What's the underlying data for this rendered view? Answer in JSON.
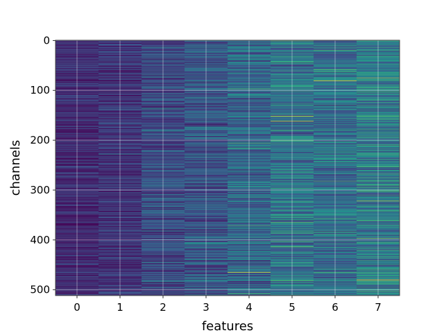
{
  "chart_data": {
    "type": "heatmap",
    "title": "",
    "xlabel": "features",
    "ylabel": "channels",
    "x_ticks": [
      "0",
      "1",
      "2",
      "3",
      "4",
      "5",
      "6",
      "7"
    ],
    "y_ticks": [
      "0",
      "100",
      "200",
      "300",
      "400",
      "500"
    ],
    "n_columns": 8,
    "n_rows": 512,
    "y_inverted": true,
    "grid": true,
    "colormap": "viridis",
    "column_intensity": [
      0.12,
      0.15,
      0.22,
      0.26,
      0.32,
      0.38,
      0.36,
      0.4
    ],
    "highlights": [
      {
        "column": 4,
        "row": 97,
        "value": 0.7
      },
      {
        "column": 4,
        "row": 216,
        "value": 0.62
      },
      {
        "column": 4,
        "row": 465,
        "value": 0.95
      },
      {
        "column": 5,
        "row": 152,
        "value": 0.92
      },
      {
        "column": 5,
        "row": 162,
        "value": 0.95
      },
      {
        "column": 5,
        "row": 200,
        "value": 0.8
      },
      {
        "column": 5,
        "row": 365,
        "value": 0.75
      },
      {
        "column": 6,
        "row": 20,
        "value": 0.7
      },
      {
        "column": 6,
        "row": 81,
        "value": 0.98
      },
      {
        "column": 6,
        "row": 465,
        "value": 0.65
      },
      {
        "column": 7,
        "row": 75,
        "value": 0.85
      },
      {
        "column": 7,
        "row": 322,
        "value": 0.88
      },
      {
        "column": 7,
        "row": 397,
        "value": 0.82
      },
      {
        "column": 7,
        "row": 480,
        "value": 1.0
      }
    ]
  }
}
